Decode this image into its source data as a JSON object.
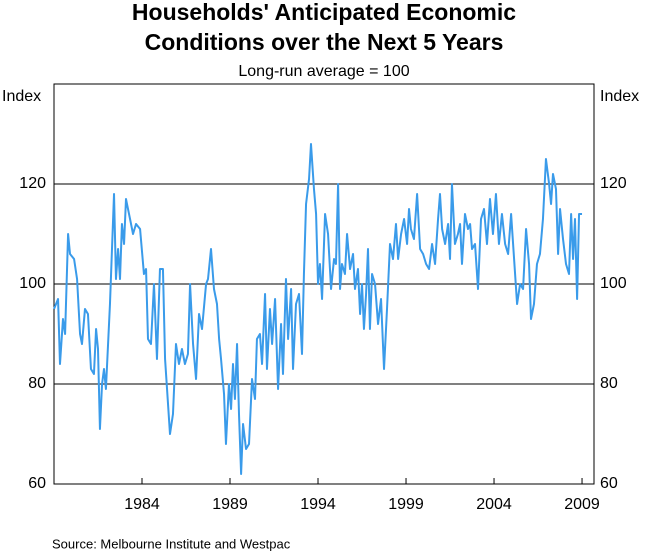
{
  "chart_data": {
    "type": "line",
    "title": [
      "Households' Anticipated Economic",
      "Conditions over the Next 5 Years"
    ],
    "subtitle": "Long-run average = 100",
    "y_label": "Index",
    "source": "Source: Melbourne Institute and Westpac",
    "color": "#3a9bea",
    "grid": true,
    "xlim": [
      1979,
      2009.68
    ],
    "xticks": [
      1984,
      1989,
      1994,
      1999,
      2004,
      2009
    ],
    "ylim": [
      60,
      140
    ],
    "yticks": [
      60,
      80,
      100,
      120
    ],
    "x": [
      1979.0,
      1979.23,
      1979.34,
      1979.51,
      1979.63,
      1979.8,
      1979.91,
      1980.14,
      1980.31,
      1980.48,
      1980.59,
      1980.76,
      1980.93,
      1981.1,
      1981.27,
      1981.39,
      1981.5,
      1981.61,
      1981.73,
      1981.84,
      1981.95,
      1982.18,
      1982.41,
      1982.52,
      1982.64,
      1982.75,
      1982.86,
      1982.98,
      1983.09,
      1983.32,
      1983.49,
      1983.66,
      1983.89,
      1984.11,
      1984.23,
      1984.34,
      1984.51,
      1984.68,
      1984.85,
      1985.02,
      1985.19,
      1985.31,
      1985.59,
      1985.76,
      1985.93,
      1986.1,
      1986.27,
      1986.44,
      1986.61,
      1986.73,
      1986.9,
      1987.07,
      1987.24,
      1987.41,
      1987.64,
      1987.75,
      1987.92,
      1988.09,
      1988.26,
      1988.38,
      1988.49,
      1988.66,
      1988.77,
      1988.94,
      1989.06,
      1989.17,
      1989.28,
      1989.4,
      1989.51,
      1989.63,
      1989.74,
      1989.91,
      1990.08,
      1990.25,
      1990.42,
      1990.53,
      1990.7,
      1990.82,
      1990.99,
      1991.1,
      1991.27,
      1991.39,
      1991.56,
      1991.73,
      1991.9,
      1992.01,
      1992.18,
      1992.3,
      1992.47,
      1992.58,
      1992.75,
      1992.92,
      1993.09,
      1993.2,
      1993.32,
      1993.49,
      1993.6,
      1993.77,
      1993.89,
      1994.0,
      1994.11,
      1994.23,
      1994.4,
      1994.57,
      1994.74,
      1994.91,
      1995.02,
      1995.14,
      1995.25,
      1995.36,
      1995.53,
      1995.65,
      1995.82,
      1995.99,
      1996.1,
      1996.27,
      1996.39,
      1996.5,
      1996.61,
      1996.73,
      1996.84,
      1996.95,
      1997.07,
      1997.24,
      1997.41,
      1997.58,
      1997.75,
      1997.92,
      1998.09,
      1998.26,
      1998.43,
      1998.55,
      1998.72,
      1998.89,
      1999.06,
      1999.17,
      1999.28,
      1999.45,
      1999.63,
      1999.8,
      1999.97,
      2000.14,
      2000.31,
      2000.48,
      2000.65,
      2000.82,
      2000.93,
      2001.05,
      2001.22,
      2001.39,
      2001.5,
      2001.61,
      2001.78,
      2001.95,
      2002.07,
      2002.18,
      2002.35,
      2002.52,
      2002.64,
      2002.75,
      2002.92,
      2003.09,
      2003.26,
      2003.43,
      2003.6,
      2003.77,
      2003.94,
      2004.11,
      2004.28,
      2004.45,
      2004.63,
      2004.8,
      2004.97,
      2005.14,
      2005.31,
      2005.48,
      2005.65,
      2005.82,
      2005.99,
      2006.1,
      2006.27,
      2006.44,
      2006.61,
      2006.78,
      2006.95,
      2007.13,
      2007.24,
      2007.35,
      2007.52,
      2007.64,
      2007.75,
      2007.92,
      2008.09,
      2008.26,
      2008.38,
      2008.49,
      2008.6,
      2008.72,
      2008.83,
      2009.0
    ],
    "values": [
      95,
      97,
      84,
      93,
      90,
      110,
      106,
      105,
      101,
      90,
      88,
      95,
      94,
      83,
      82,
      91,
      87,
      71,
      80,
      83,
      79,
      96,
      118,
      101,
      107,
      101,
      112,
      108,
      117,
      113,
      110,
      112,
      111,
      102,
      103,
      89,
      88,
      100,
      85,
      103,
      103,
      85,
      70,
      74,
      88,
      84,
      87,
      84,
      86,
      100,
      88,
      81,
      94,
      91,
      100,
      101,
      107,
      99,
      96,
      89,
      85,
      78,
      68,
      80,
      75,
      84,
      77,
      88,
      74,
      62,
      72,
      67,
      68,
      81,
      77,
      89,
      90,
      84,
      98,
      83,
      95,
      88,
      97,
      79,
      92,
      82,
      101,
      89,
      99,
      83,
      96,
      98,
      86,
      102,
      116,
      121,
      128,
      119,
      114,
      100,
      104,
      97,
      114,
      110,
      99,
      105,
      104,
      120,
      99,
      104,
      102,
      110,
      103,
      106,
      99,
      103,
      94,
      100,
      91,
      98,
      107,
      91,
      102,
      100,
      92,
      97,
      83,
      95,
      108,
      105,
      112,
      105,
      110,
      113,
      108,
      115,
      111,
      109,
      118,
      107,
      106,
      104,
      103,
      108,
      104,
      113,
      118,
      111,
      108,
      112,
      105,
      120,
      108,
      110,
      112,
      104,
      114,
      111,
      112,
      107,
      108,
      99,
      113,
      115,
      108,
      117,
      110,
      118,
      108,
      114,
      108,
      106,
      114,
      105,
      96,
      100,
      99,
      111,
      104,
      93,
      96,
      104,
      106,
      113,
      125,
      120,
      116,
      122,
      119,
      106,
      115,
      109,
      104,
      102,
      114,
      105,
      113,
      97,
      114,
      114
    ]
  }
}
